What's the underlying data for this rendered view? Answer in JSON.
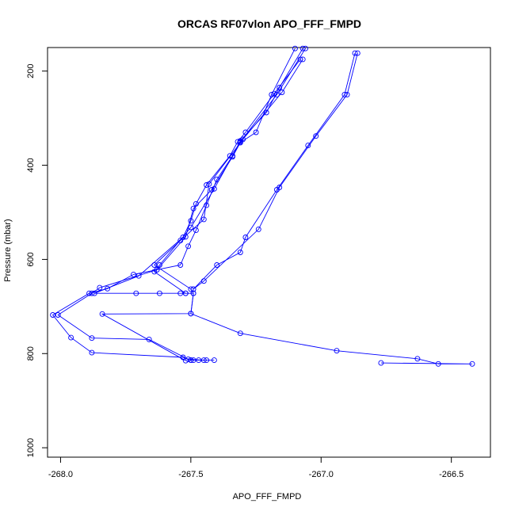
{
  "chart_data": {
    "type": "line",
    "title": "ORCAS RF07vlon APO_FFF_FMPD",
    "xlabel": "APO_FFF_FMPD",
    "ylabel": "Pressure (mbar)",
    "xlim": [
      -268.05,
      -266.35
    ],
    "ylim": [
      1020,
      150
    ],
    "y_inverted": true,
    "x_ticks": [
      -268.0,
      -267.5,
      -267.0,
      -266.5
    ],
    "x_tick_labels": [
      "-268.0",
      "-267.5",
      "-267.0",
      "-266.5"
    ],
    "y_ticks": [
      200,
      400,
      600,
      800,
      1000
    ],
    "y_tick_labels": [
      "200",
      "400",
      "600",
      "800",
      "1000"
    ],
    "grid": false,
    "legend": "none",
    "series_color": "#0000ff",
    "marker": "open-circle",
    "series": [
      {
        "points": [
          [
            -267.07,
            152
          ],
          [
            -267.16,
            235
          ],
          [
            -267.21,
            288
          ],
          [
            -267.31,
            348
          ],
          [
            -267.34,
            380
          ],
          [
            -267.4,
            430
          ],
          [
            -267.44,
            485
          ],
          [
            -267.48,
            538
          ],
          [
            -267.51,
            572
          ],
          [
            -267.54,
            612
          ],
          [
            -267.72,
            632
          ],
          [
            -267.82,
            662
          ],
          [
            -267.89,
            672
          ],
          [
            -268.03,
            718
          ],
          [
            -267.96,
            766
          ],
          [
            -267.88,
            798
          ],
          [
            -267.53,
            808
          ],
          [
            -267.5,
            814
          ]
        ]
      },
      {
        "points": [
          [
            -267.5,
            814
          ],
          [
            -267.44,
            814
          ],
          [
            -267.41,
            814
          ],
          [
            -267.47,
            814
          ],
          [
            -267.49,
            814
          ]
        ]
      },
      {
        "points": [
          [
            -267.1,
            152
          ],
          [
            -267.19,
            250
          ],
          [
            -267.25,
            330
          ],
          [
            -267.31,
            352
          ],
          [
            -267.34,
            382
          ],
          [
            -267.42,
            452
          ],
          [
            -267.49,
            492
          ],
          [
            -267.52,
            552
          ],
          [
            -267.63,
            622
          ],
          [
            -267.85,
            660
          ],
          [
            -267.88,
            672
          ],
          [
            -268.01,
            718
          ],
          [
            -267.88,
            767
          ],
          [
            -267.66,
            770
          ],
          [
            -267.51,
            812
          ],
          [
            -267.45,
            814
          ]
        ]
      },
      {
        "points": [
          [
            -267.08,
            175
          ],
          [
            -267.18,
            248
          ],
          [
            -267.29,
            330
          ],
          [
            -267.32,
            350
          ],
          [
            -267.35,
            380
          ],
          [
            -267.44,
            442
          ],
          [
            -267.48,
            482
          ],
          [
            -267.5,
            518
          ],
          [
            -267.53,
            553
          ],
          [
            -267.7,
            635
          ],
          [
            -267.87,
            672
          ],
          [
            -267.71,
            672
          ],
          [
            -267.62,
            672
          ],
          [
            -267.54,
            672
          ],
          [
            -267.52,
            672
          ],
          [
            -267.49,
            672
          ],
          [
            -267.5,
            715
          ],
          [
            -267.84,
            716
          ],
          [
            -267.52,
            815
          ]
        ]
      },
      {
        "points": [
          [
            -267.06,
            152
          ],
          [
            -267.17,
            250
          ],
          [
            -267.31,
            350
          ],
          [
            -267.41,
            450
          ],
          [
            -267.5,
            532
          ],
          [
            -267.62,
            612
          ],
          [
            -267.64,
            626
          ],
          [
            -267.52,
            672
          ]
        ]
      },
      {
        "points": [
          [
            -267.07,
            175
          ],
          [
            -267.15,
            245
          ],
          [
            -267.3,
            345
          ],
          [
            -267.43,
            440
          ],
          [
            -267.45,
            515
          ],
          [
            -267.54,
            560
          ],
          [
            -267.64,
            612
          ],
          [
            -267.5,
            663
          ],
          [
            -267.49,
            672
          ],
          [
            -267.5,
            715
          ],
          [
            -267.31,
            757
          ],
          [
            -266.94,
            794
          ],
          [
            -266.63,
            811
          ],
          [
            -266.55,
            822
          ],
          [
            -266.42,
            822
          ],
          [
            -266.77,
            820
          ]
        ]
      },
      {
        "points": [
          [
            -266.86,
            162
          ],
          [
            -266.9,
            250
          ],
          [
            -267.02,
            338
          ],
          [
            -267.16,
            447
          ],
          [
            -267.24,
            536
          ],
          [
            -267.45,
            646
          ],
          [
            -267.49,
            663
          ]
        ]
      },
      {
        "points": [
          [
            -266.87,
            162
          ],
          [
            -266.91,
            250
          ],
          [
            -267.05,
            358
          ],
          [
            -267.17,
            452
          ],
          [
            -267.29,
            553
          ],
          [
            -267.31,
            585
          ],
          [
            -267.4,
            612
          ],
          [
            -267.49,
            663
          ]
        ]
      }
    ]
  }
}
